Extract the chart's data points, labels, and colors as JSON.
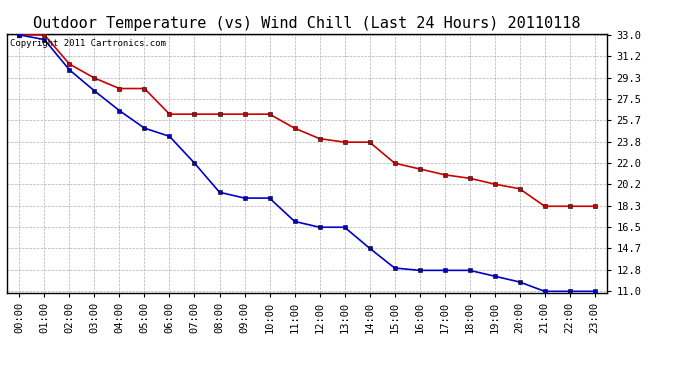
{
  "title": "Outdoor Temperature (vs) Wind Chill (Last 24 Hours) 20110118",
  "copyright_text": "Copyright 2011 Cartronics.com",
  "x_labels": [
    "00:00",
    "01:00",
    "02:00",
    "03:00",
    "04:00",
    "05:00",
    "06:00",
    "07:00",
    "08:00",
    "09:00",
    "10:00",
    "11:00",
    "12:00",
    "13:00",
    "14:00",
    "15:00",
    "16:00",
    "17:00",
    "18:00",
    "19:00",
    "20:00",
    "21:00",
    "22:00",
    "23:00"
  ],
  "temp_data": [
    33.0,
    33.0,
    30.5,
    29.3,
    28.4,
    28.4,
    26.2,
    26.2,
    26.2,
    26.2,
    26.2,
    25.0,
    24.1,
    23.8,
    23.8,
    22.0,
    21.5,
    21.0,
    20.7,
    20.2,
    19.8,
    18.3,
    18.3,
    18.3
  ],
  "windchill_data": [
    33.0,
    32.6,
    30.0,
    28.2,
    26.5,
    25.0,
    24.3,
    22.0,
    19.5,
    19.0,
    19.0,
    17.0,
    16.5,
    16.5,
    14.7,
    13.0,
    12.8,
    12.8,
    12.8,
    12.3,
    11.8,
    11.0,
    11.0,
    11.0
  ],
  "temp_color": "#cc0000",
  "windchill_color": "#0000cc",
  "marker": "s",
  "markersize": 3,
  "linewidth": 1.2,
  "ylim_min": 11.0,
  "ylim_max": 33.0,
  "yticks": [
    11.0,
    12.8,
    14.7,
    16.5,
    18.3,
    20.2,
    22.0,
    23.8,
    25.7,
    27.5,
    29.3,
    31.2,
    33.0
  ],
  "grid_color": "#b0b0b0",
  "grid_linestyle": "--",
  "background_color": "#ffffff",
  "title_fontsize": 11,
  "tick_fontsize": 7.5,
  "copyright_fontsize": 6.5
}
